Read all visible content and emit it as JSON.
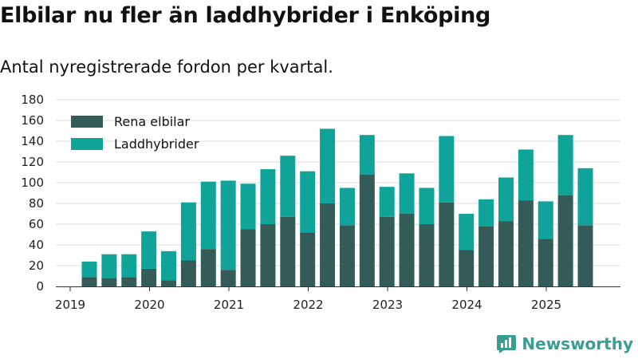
{
  "header": {
    "title": "Elbilar nu fler än laddhybrider i Enköping",
    "subtitle": "Antal nyregistrerade fordon per kvartal."
  },
  "brand": {
    "name": "Newsworthy"
  },
  "colors": {
    "series_1": "#335c58",
    "series_2": "#0fa39a",
    "grid": "#dddddd",
    "axis": "#333333",
    "brand": "#3a9d94"
  },
  "chart_data": {
    "type": "bar",
    "stacked": true,
    "title": "Elbilar nu fler än laddhybrider i Enköping",
    "subtitle": "Antal nyregistrerade fordon per kvartal.",
    "xlabel": "",
    "ylabel": "",
    "ylim": [
      0,
      180
    ],
    "yticks": [
      0,
      20,
      40,
      60,
      80,
      100,
      120,
      140,
      160,
      180
    ],
    "grid": true,
    "legend_position": "top-left",
    "x_tick_labels": [
      "2019",
      "2020",
      "2021",
      "2022",
      "2023",
      "2024",
      "2025"
    ],
    "categories": [
      "2019 Q2",
      "2019 Q3",
      "2019 Q4",
      "2020 Q1",
      "2020 Q2",
      "2020 Q3",
      "2020 Q4",
      "2021 Q1",
      "2021 Q2",
      "2021 Q3",
      "2021 Q4",
      "2022 Q1",
      "2022 Q2",
      "2022 Q3",
      "2022 Q4",
      "2023 Q1",
      "2023 Q2",
      "2023 Q3",
      "2023 Q4",
      "2024 Q1",
      "2024 Q2",
      "2024 Q3",
      "2024 Q4",
      "2025 Q1",
      "2025 Q2",
      "2025 Q3"
    ],
    "series": [
      {
        "name": "Rena elbilar",
        "values": [
          9,
          8,
          9,
          17,
          6,
          25,
          36,
          16,
          55,
          60,
          67,
          52,
          80,
          59,
          108,
          67,
          70,
          60,
          81,
          35,
          58,
          63,
          83,
          46,
          88,
          59
        ]
      },
      {
        "name": "Laddhybrider",
        "values": [
          15,
          23,
          22,
          36,
          28,
          56,
          65,
          86,
          44,
          53,
          59,
          59,
          72,
          36,
          38,
          29,
          39,
          35,
          64,
          35,
          26,
          42,
          49,
          36,
          58,
          55
        ]
      }
    ]
  }
}
